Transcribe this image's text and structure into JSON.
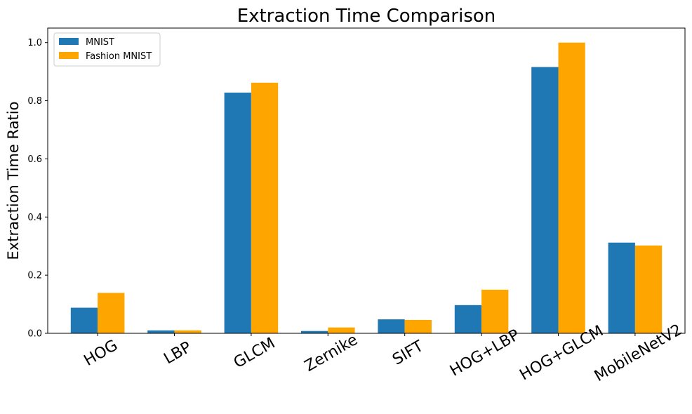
{
  "chart_data": {
    "type": "bar",
    "title": "Extraction Time Comparison",
    "xlabel": "",
    "ylabel": "Extraction Time Ratio",
    "categories": [
      "HOG",
      "LBP",
      "GLCM",
      "Zernike",
      "SIFT",
      "HOG+LBP",
      "HOG+GLCM",
      "MobileNetV2"
    ],
    "series": [
      {
        "name": "MNIST",
        "color": "#1f77b4",
        "values": [
          0.088,
          0.01,
          0.828,
          0.008,
          0.048,
          0.097,
          0.916,
          0.312
        ]
      },
      {
        "name": "Fashion MNIST",
        "color": "#ffa500",
        "values": [
          0.139,
          0.01,
          0.862,
          0.02,
          0.046,
          0.15,
          1.0,
          0.302
        ]
      }
    ],
    "ylim": [
      0,
      1.05
    ],
    "yticks": [
      "0.0",
      "0.2",
      "0.4",
      "0.6",
      "0.8",
      "1.0"
    ],
    "grid": false,
    "legend": "top-left"
  }
}
